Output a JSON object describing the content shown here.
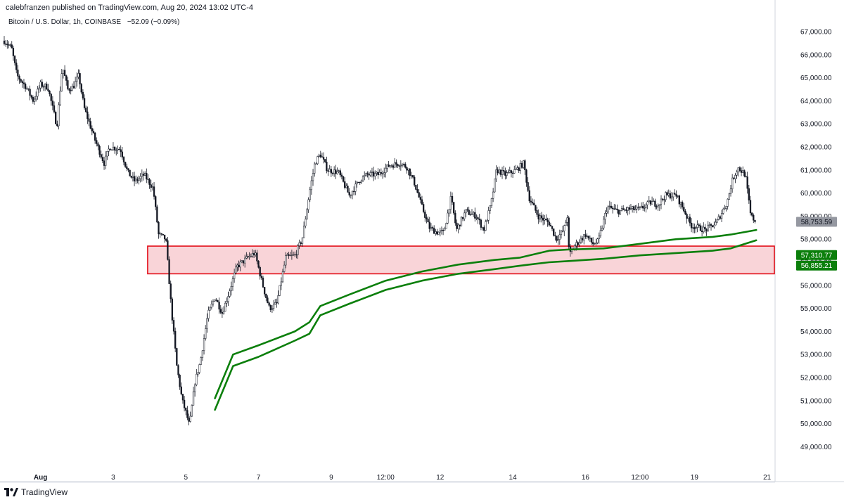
{
  "header": {
    "published_line": "calebfranzen published on TradingView.com, Aug 20, 2024 13:02 UTC-4"
  },
  "symbol": {
    "name": "Bitcoin / U.S. Dollar, 1h, COINBASE",
    "change": "−52.09 (−0.09%)"
  },
  "footer": {
    "brand": "TradingView",
    "logo_icon": "tradingview-logo-icon"
  },
  "chart_data": {
    "type": "candlestick",
    "ylim": [
      48600,
      67400
    ],
    "y_ticks": [
      "67,000.00",
      "66,000.00",
      "65,000.00",
      "64,000.00",
      "63,000.00",
      "62,000.00",
      "61,000.00",
      "60,000.00",
      "59,000.00",
      "58,000.00",
      "57,000.00",
      "56,000.00",
      "55,000.00",
      "54,000.00",
      "53,000.00",
      "52,000.00",
      "51,000.00",
      "50,000.00",
      "49,000.00"
    ],
    "y_tick_values": [
      67000,
      66000,
      65000,
      64000,
      63000,
      62000,
      61000,
      60000,
      59000,
      58000,
      57000,
      56000,
      55000,
      54000,
      53000,
      52000,
      51000,
      50000,
      49000
    ],
    "x_ticks": [
      {
        "label": "Aug",
        "day": 1
      },
      {
        "label": "3",
        "day": 3
      },
      {
        "label": "5",
        "day": 5
      },
      {
        "label": "7",
        "day": 7
      },
      {
        "label": "9",
        "day": 9
      },
      {
        "label": "12:00",
        "day": 10.5
      },
      {
        "label": "12",
        "day": 12
      },
      {
        "label": "14",
        "day": 14
      },
      {
        "label": "16",
        "day": 16
      },
      {
        "label": "12:00",
        "day": 17.5
      },
      {
        "label": "19",
        "day": 19
      },
      {
        "label": "21",
        "day": 21
      }
    ],
    "price_path": [
      [
        0.0,
        66600
      ],
      [
        0.2,
        66300
      ],
      [
        0.35,
        65100
      ],
      [
        0.6,
        64600
      ],
      [
        0.8,
        64000
      ],
      [
        1.0,
        64700
      ],
      [
        1.2,
        64600
      ],
      [
        1.45,
        62900
      ],
      [
        1.6,
        65500
      ],
      [
        1.75,
        64500
      ],
      [
        1.9,
        64600
      ],
      [
        2.05,
        65100
      ],
      [
        2.2,
        63700
      ],
      [
        2.5,
        62300
      ],
      [
        2.75,
        61300
      ],
      [
        2.9,
        62000
      ],
      [
        3.2,
        61900
      ],
      [
        3.4,
        60900
      ],
      [
        3.6,
        60500
      ],
      [
        3.85,
        60800
      ],
      [
        4.1,
        60200
      ],
      [
        4.25,
        58200
      ],
      [
        4.45,
        58000
      ],
      [
        4.6,
        55000
      ],
      [
        4.75,
        52500
      ],
      [
        4.9,
        51000
      ],
      [
        5.0,
        50500
      ],
      [
        5.1,
        49900
      ],
      [
        5.25,
        51800
      ],
      [
        5.4,
        52700
      ],
      [
        5.6,
        54700
      ],
      [
        5.8,
        55500
      ],
      [
        6.0,
        54800
      ],
      [
        6.15,
        55500
      ],
      [
        6.4,
        56800
      ],
      [
        6.7,
        57200
      ],
      [
        6.9,
        57400
      ],
      [
        7.15,
        55800
      ],
      [
        7.3,
        55000
      ],
      [
        7.5,
        55200
      ],
      [
        7.75,
        57200
      ],
      [
        8.0,
        57300
      ],
      [
        8.2,
        58000
      ],
      [
        8.4,
        60000
      ],
      [
        8.55,
        61300
      ],
      [
        8.7,
        61700
      ],
      [
        8.9,
        61000
      ],
      [
        9.2,
        60900
      ],
      [
        9.5,
        59900
      ],
      [
        9.8,
        60600
      ],
      [
        10.0,
        60800
      ],
      [
        10.3,
        60800
      ],
      [
        10.6,
        61200
      ],
      [
        10.9,
        61300
      ],
      [
        11.1,
        61100
      ],
      [
        11.3,
        60400
      ],
      [
        11.5,
        59400
      ],
      [
        11.7,
        58500
      ],
      [
        11.9,
        58300
      ],
      [
        12.1,
        58300
      ],
      [
        12.3,
        59800
      ],
      [
        12.45,
        58400
      ],
      [
        12.7,
        59200
      ],
      [
        13.0,
        59000
      ],
      [
        13.2,
        58400
      ],
      [
        13.4,
        59500
      ],
      [
        13.55,
        61000
      ],
      [
        13.8,
        60800
      ],
      [
        14.1,
        61000
      ],
      [
        14.3,
        61300
      ],
      [
        14.45,
        59800
      ],
      [
        14.7,
        59000
      ],
      [
        15.0,
        58700
      ],
      [
        15.2,
        58000
      ],
      [
        15.4,
        58400
      ],
      [
        15.5,
        59000
      ],
      [
        15.55,
        57300
      ],
      [
        15.7,
        57700
      ],
      [
        16.0,
        58200
      ],
      [
        16.2,
        57800
      ],
      [
        16.35,
        57900
      ],
      [
        16.6,
        59400
      ],
      [
        16.9,
        59200
      ],
      [
        17.2,
        59300
      ],
      [
        17.5,
        59300
      ],
      [
        17.8,
        59600
      ],
      [
        18.0,
        59500
      ],
      [
        18.2,
        59900
      ],
      [
        18.5,
        59900
      ],
      [
        18.7,
        59300
      ],
      [
        18.9,
        58600
      ],
      [
        19.1,
        58500
      ],
      [
        19.3,
        58400
      ],
      [
        19.6,
        58700
      ],
      [
        19.9,
        59600
      ],
      [
        20.05,
        60600
      ],
      [
        20.2,
        61100
      ],
      [
        20.4,
        60800
      ],
      [
        20.55,
        59000
      ],
      [
        20.7,
        58750
      ]
    ],
    "support_zone": {
      "low": 56500,
      "high": 57700,
      "start_day": 4.2,
      "end_day": 21.2,
      "color": "#e3101a"
    },
    "series": [
      {
        "name": "",
        "color": "#0b7f0b",
        "values": [
          [
            5.8,
            51100
          ],
          [
            6.3,
            53000
          ],
          [
            7.0,
            53400
          ],
          [
            8.0,
            54000
          ],
          [
            8.4,
            54400
          ],
          [
            8.7,
            55100
          ],
          [
            9.5,
            55600
          ],
          [
            10.5,
            56200
          ],
          [
            11.5,
            56600
          ],
          [
            12.5,
            56900
          ],
          [
            13.5,
            57100
          ],
          [
            14.2,
            57200
          ],
          [
            15.0,
            57500
          ],
          [
            15.5,
            57550
          ],
          [
            16.5,
            57600
          ],
          [
            17.5,
            57800
          ],
          [
            18.5,
            58000
          ],
          [
            19.5,
            58100
          ],
          [
            20.0,
            58200
          ],
          [
            20.7,
            58400
          ]
        ]
      },
      {
        "name": "",
        "color": "#0b7f0b",
        "values": [
          [
            5.8,
            50600
          ],
          [
            6.3,
            52500
          ],
          [
            7.0,
            52900
          ],
          [
            8.0,
            53600
          ],
          [
            8.4,
            53900
          ],
          [
            8.7,
            54700
          ],
          [
            9.5,
            55200
          ],
          [
            10.5,
            55800
          ],
          [
            11.5,
            56200
          ],
          [
            12.5,
            56500
          ],
          [
            13.5,
            56700
          ],
          [
            14.2,
            56850
          ],
          [
            15.0,
            57000
          ],
          [
            15.5,
            57050
          ],
          [
            16.5,
            57150
          ],
          [
            17.5,
            57300
          ],
          [
            18.5,
            57400
          ],
          [
            19.5,
            57500
          ],
          [
            20.0,
            57600
          ],
          [
            20.7,
            57950
          ]
        ]
      }
    ],
    "last_price": {
      "label": "58,753.59",
      "bg": "#9598a1",
      "text_color": "#131722"
    },
    "vwap_labels": [
      {
        "label": "57,310.77",
        "bg": "#0b7f0b",
        "text_color": "#ffffff"
      },
      {
        "label": "56,855.21",
        "bg": "#0b7f0b",
        "text_color": "#ffffff"
      }
    ]
  }
}
